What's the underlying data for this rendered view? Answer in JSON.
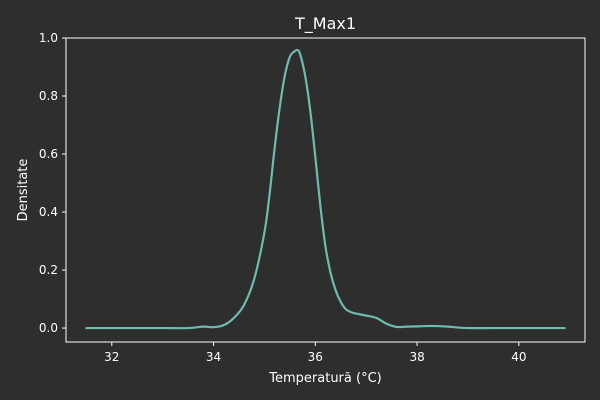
{
  "chart_data": {
    "type": "line",
    "title": "T_Max1",
    "xlabel": "Temperatură (°C)",
    "ylabel": "Densitate",
    "xlim": [
      31.1,
      41.3
    ],
    "ylim": [
      -0.048,
      1.0
    ],
    "x_ticks": [
      32,
      34,
      36,
      38,
      40
    ],
    "x_tick_labels": [
      "32",
      "34",
      "36",
      "38",
      "40"
    ],
    "y_ticks": [
      0.0,
      0.2,
      0.4,
      0.6,
      0.8,
      1.0
    ],
    "y_tick_labels": [
      "0.0",
      "0.2",
      "0.4",
      "0.6",
      "0.8",
      "1.0"
    ],
    "grid": false,
    "legend": "none",
    "series": [
      {
        "color": "#6dbcb0",
        "x": [
          31.5,
          32.0,
          33.0,
          33.5,
          33.8,
          34.0,
          34.2,
          34.4,
          34.6,
          34.8,
          35.0,
          35.1,
          35.2,
          35.3,
          35.4,
          35.5,
          35.6,
          35.65,
          35.7,
          35.8,
          35.9,
          36.0,
          36.1,
          36.2,
          36.3,
          36.4,
          36.5,
          36.6,
          36.7,
          36.8,
          37.0,
          37.2,
          37.4,
          37.6,
          37.8,
          38.0,
          38.2,
          38.4,
          38.6,
          38.8,
          39.0,
          39.5,
          40.0,
          40.5,
          40.9
        ],
        "y": [
          0.0,
          0.0,
          0.0,
          0.0,
          0.005,
          0.003,
          0.01,
          0.035,
          0.08,
          0.17,
          0.33,
          0.46,
          0.62,
          0.76,
          0.87,
          0.935,
          0.955,
          0.958,
          0.945,
          0.87,
          0.75,
          0.59,
          0.42,
          0.28,
          0.19,
          0.13,
          0.09,
          0.065,
          0.055,
          0.05,
          0.043,
          0.035,
          0.015,
          0.004,
          0.005,
          0.006,
          0.007,
          0.007,
          0.005,
          0.002,
          0.0,
          0.0,
          0.0,
          0.0,
          0.0
        ]
      }
    ]
  }
}
